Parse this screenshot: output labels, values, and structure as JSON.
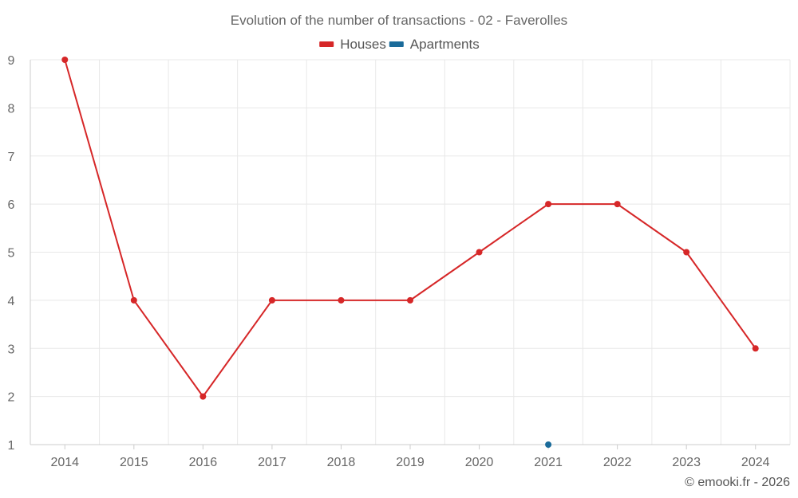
{
  "chart_data": {
    "type": "line",
    "title": "Evolution of the number of transactions - 02 - Faverolles",
    "xlabel": "",
    "ylabel": "",
    "x": [
      "2014",
      "2015",
      "2016",
      "2017",
      "2018",
      "2019",
      "2020",
      "2021",
      "2022",
      "2023",
      "2024"
    ],
    "ylim": [
      1,
      9
    ],
    "yticks": [
      "1",
      "2",
      "3",
      "4",
      "5",
      "6",
      "7",
      "8",
      "9"
    ],
    "grid": true,
    "legend_position": "top-center",
    "series": [
      {
        "name": "Houses",
        "color": "#d62728",
        "values": [
          9,
          4,
          2,
          4,
          4,
          4,
          5,
          6,
          6,
          5,
          3
        ]
      },
      {
        "name": "Apartments",
        "color": "#1a6b9a",
        "values": [
          null,
          null,
          null,
          null,
          null,
          null,
          null,
          1,
          null,
          null,
          null
        ]
      }
    ]
  },
  "credit": "© emooki.fr - 2026"
}
